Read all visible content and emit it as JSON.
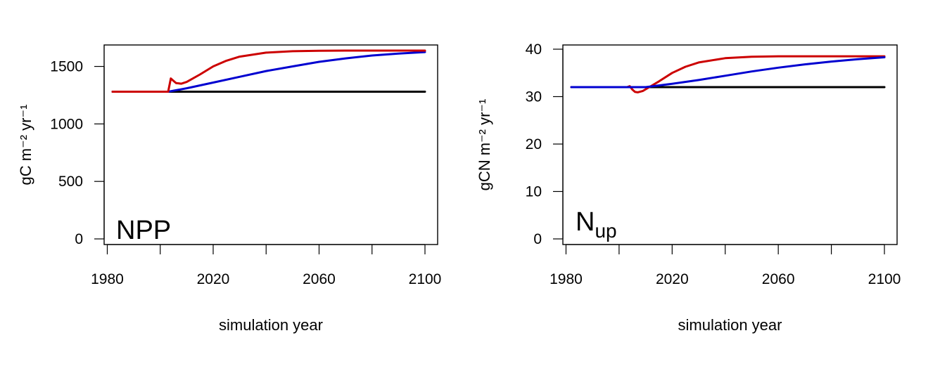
{
  "chart_data": [
    {
      "type": "line",
      "panel_label": "NPP",
      "panel_label_sub": "",
      "xlabel": "simulation year",
      "ylabel": "gC m⁻² yr⁻¹",
      "xlim": [
        1980,
        2100
      ],
      "ylim": [
        0,
        1650
      ],
      "xticks": [
        1980,
        2000,
        2020,
        2040,
        2060,
        2080,
        2100
      ],
      "xtick_labels": [
        "1980",
        "",
        "2020",
        "",
        "2060",
        "",
        "2100"
      ],
      "yticks": [
        0,
        500,
        1000,
        1500
      ],
      "ytick_labels": [
        "0",
        "500",
        "1000",
        "1500"
      ],
      "grid": false,
      "legend": "none",
      "series": [
        {
          "color": "#000000",
          "x": [
            1982,
            2100
          ],
          "y": [
            1280,
            1280
          ]
        },
        {
          "color": "#0000d0",
          "x": [
            1982,
            2003,
            2010,
            2020,
            2030,
            2040,
            2050,
            2060,
            2070,
            2080,
            2090,
            2100
          ],
          "y": [
            1280,
            1280,
            1310,
            1360,
            1410,
            1460,
            1500,
            1540,
            1570,
            1595,
            1612,
            1625
          ]
        },
        {
          "color": "#cc0000",
          "x": [
            1982,
            2003,
            2004,
            2005,
            2006,
            2008,
            2010,
            2015,
            2020,
            2025,
            2030,
            2040,
            2050,
            2060,
            2070,
            2080,
            2090,
            2100
          ],
          "y": [
            1280,
            1280,
            1395,
            1375,
            1355,
            1350,
            1365,
            1430,
            1500,
            1550,
            1585,
            1620,
            1632,
            1636,
            1638,
            1638,
            1638,
            1638
          ]
        }
      ]
    },
    {
      "type": "line",
      "panel_label": "N",
      "panel_label_sub": "up",
      "xlabel": "simulation year",
      "ylabel": "gCN m⁻² yr⁻¹",
      "xlim": [
        1980,
        2100
      ],
      "ylim": [
        0,
        40
      ],
      "xticks": [
        1980,
        2000,
        2020,
        2040,
        2060,
        2080,
        2100
      ],
      "xtick_labels": [
        "1980",
        "",
        "2020",
        "",
        "2060",
        "",
        "2100"
      ],
      "yticks": [
        0,
        10,
        20,
        30,
        40
      ],
      "ytick_labels": [
        "0",
        "10",
        "20",
        "30",
        "40"
      ],
      "grid": false,
      "legend": "none",
      "series": [
        {
          "color": "#000000",
          "x": [
            1982,
            2100
          ],
          "y": [
            32,
            32
          ]
        },
        {
          "color": "#cc0000",
          "x": [
            1982,
            2003,
            2004,
            2005,
            2006,
            2007,
            2009,
            2012,
            2015,
            2020,
            2025,
            2030,
            2040,
            2050,
            2060,
            2070,
            2080,
            2090,
            2100
          ],
          "y": [
            32,
            32,
            32.2,
            31.5,
            31,
            30.9,
            31.2,
            32.2,
            33.2,
            35.0,
            36.3,
            37.2,
            38.1,
            38.4,
            38.5,
            38.5,
            38.5,
            38.5,
            38.5
          ]
        },
        {
          "color": "#0000d0",
          "x": [
            1982,
            2003,
            2010,
            2020,
            2030,
            2040,
            2050,
            2060,
            2070,
            2080,
            2090,
            2100
          ],
          "y": [
            32,
            32,
            32,
            32.7,
            33.5,
            34.4,
            35.3,
            36.1,
            36.8,
            37.4,
            37.9,
            38.3
          ]
        }
      ]
    }
  ]
}
